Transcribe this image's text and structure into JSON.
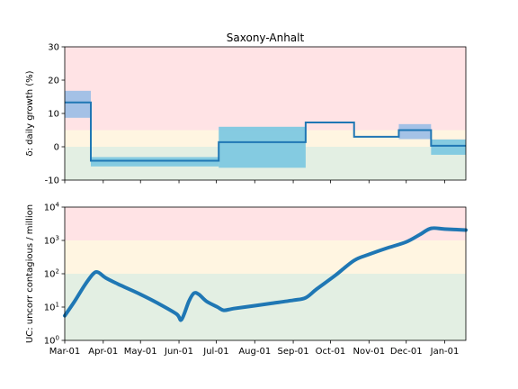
{
  "chart_data": [
    {
      "type": "line",
      "title": "Saxony-Anhalt",
      "ylabel": "δ: daily growth (%)",
      "ylim": [
        -10,
        30
      ],
      "yticks": [
        -10,
        0,
        10,
        20,
        30
      ],
      "x_range": [
        "2020-03-01",
        "2021-01-18"
      ],
      "bands": [
        {
          "from": 5,
          "to": 30,
          "color": "#ffe3e5"
        },
        {
          "from": 0,
          "to": 5,
          "color": "#fff5e1"
        },
        {
          "from": -10,
          "to": 0,
          "color": "#e3efe3"
        }
      ],
      "series": [
        {
          "segments": [
            {
              "start": "2020-03-01",
              "end": "2020-03-22",
              "value": 13.3,
              "ci_low": 8.7,
              "ci_high": 16.8,
              "ci_color": "#9fbfe6"
            },
            {
              "start": "2020-03-22",
              "end": "2020-07-03",
              "value": -4.2,
              "ci_low": -5.9,
              "ci_high": -3.1,
              "ci_color": "#7ec8e0"
            },
            {
              "start": "2020-07-03",
              "end": "2020-09-11",
              "value": 1.4,
              "ci_low": -6.3,
              "ci_high": 6.0,
              "ci_color": "#7ec8e0"
            },
            {
              "start": "2020-09-11",
              "end": "2020-10-20",
              "value": 7.3,
              "ci_low": 7.3,
              "ci_high": 7.3,
              "ci_color": "#7ec8e0"
            },
            {
              "start": "2020-10-20",
              "end": "2020-11-25",
              "value": 3.0,
              "ci_low": 3.0,
              "ci_high": 3.0,
              "ci_color": "#7ec8e0"
            },
            {
              "start": "2020-11-25",
              "end": "2020-12-21",
              "value": 5.0,
              "ci_low": 2.3,
              "ci_high": 6.8,
              "ci_color": "#9fbfe6"
            },
            {
              "start": "2020-12-21",
              "end": "2021-01-18",
              "value": 0.3,
              "ci_low": -2.4,
              "ci_high": 2.2,
              "ci_color": "#7ec8e0"
            }
          ]
        }
      ]
    },
    {
      "type": "line",
      "ylabel": "UC: uncorr contagious / million",
      "yscale": "log",
      "ylim": [
        1,
        10000
      ],
      "yticks": [
        {
          "value": 1,
          "base": "10",
          "exp": "0"
        },
        {
          "value": 10,
          "base": "10",
          "exp": "1"
        },
        {
          "value": 100,
          "base": "10",
          "exp": "2"
        },
        {
          "value": 1000,
          "base": "10",
          "exp": "3"
        },
        {
          "value": 10000,
          "base": "10",
          "exp": "4"
        }
      ],
      "x_range": [
        "2020-03-01",
        "2021-01-18"
      ],
      "bands": [
        {
          "from": 1000,
          "to": 10000,
          "color": "#ffe3e5"
        },
        {
          "from": 100,
          "to": 1000,
          "color": "#fff5e1"
        },
        {
          "from": 1,
          "to": 100,
          "color": "#e3efe3"
        }
      ],
      "series": [
        {
          "points": [
            [
              "2020-03-01",
              5.5
            ],
            [
              "2020-03-09",
              15
            ],
            [
              "2020-03-17",
              45
            ],
            [
              "2020-03-24",
              100
            ],
            [
              "2020-03-28",
              110
            ],
            [
              "2020-04-03",
              75
            ],
            [
              "2020-04-15",
              45
            ],
            [
              "2020-05-01",
              24
            ],
            [
              "2020-05-15",
              13
            ],
            [
              "2020-05-30",
              6.2
            ],
            [
              "2020-06-03",
              4.2
            ],
            [
              "2020-06-09",
              15
            ],
            [
              "2020-06-13",
              26
            ],
            [
              "2020-06-17",
              24
            ],
            [
              "2020-06-23",
              15
            ],
            [
              "2020-07-02",
              10
            ],
            [
              "2020-07-07",
              8.0
            ],
            [
              "2020-07-15",
              9.0
            ],
            [
              "2020-08-01",
              11
            ],
            [
              "2020-08-15",
              13
            ],
            [
              "2020-09-01",
              16
            ],
            [
              "2020-09-11",
              19
            ],
            [
              "2020-09-20",
              35
            ],
            [
              "2020-10-05",
              90
            ],
            [
              "2020-10-20",
              250
            ],
            [
              "2020-11-01",
              380
            ],
            [
              "2020-11-15",
              580
            ],
            [
              "2020-12-01",
              900
            ],
            [
              "2020-12-12",
              1500
            ],
            [
              "2020-12-21",
              2300
            ],
            [
              "2021-01-01",
              2200
            ],
            [
              "2021-01-18",
              2050
            ]
          ]
        }
      ]
    }
  ],
  "x_ticks": [
    {
      "date": "2020-03-01",
      "label": "Mar-01"
    },
    {
      "date": "2020-04-01",
      "label": "Apr-01"
    },
    {
      "date": "2020-05-01",
      "label": "May-01"
    },
    {
      "date": "2020-06-01",
      "label": "Jun-01"
    },
    {
      "date": "2020-07-01",
      "label": "Jul-01"
    },
    {
      "date": "2020-08-01",
      "label": "Aug-01"
    },
    {
      "date": "2020-09-01",
      "label": "Sep-01"
    },
    {
      "date": "2020-10-01",
      "label": "Oct-01"
    },
    {
      "date": "2020-11-01",
      "label": "Nov-01"
    },
    {
      "date": "2020-12-01",
      "label": "Dec-01"
    },
    {
      "date": "2021-01-01",
      "label": "Jan-01"
    }
  ],
  "colors": {
    "line": "#1f77b4",
    "axis": "#000000"
  }
}
